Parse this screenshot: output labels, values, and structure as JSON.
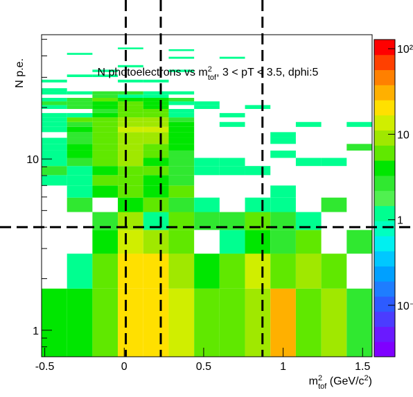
{
  "chart_data": {
    "type": "heatmap",
    "title": [
      "N photoelectrons vs m",
      "2",
      "tof",
      ", 3 < pT < 3.5, dphi:5"
    ],
    "xlabel": [
      "m",
      "2",
      "tof",
      " (GeV/c",
      "2",
      ")"
    ],
    "ylabel": "N p.e.",
    "xbins": [
      -0.52,
      -0.36,
      -0.2,
      -0.04,
      0.12,
      0.28,
      0.44,
      0.6,
      0.76,
      0.92,
      1.08,
      1.24,
      1.4,
      1.56
    ],
    "ybins": [
      0.7,
      1.75,
      2.8,
      3.85,
      4.9,
      5.95,
      7,
      8.05,
      9.1,
      10.15,
      11.2,
      12.25,
      13.3,
      14.35,
      15.4,
      16.45,
      17.5,
      18.55,
      19.6,
      20.65,
      21.7,
      22.75,
      23.8,
      24.85,
      25.9,
      26.95,
      28,
      29.05,
      30.1,
      31.15,
      32.2,
      33.25,
      34.3,
      35.35,
      36.4,
      37.45,
      38.5,
      39.55,
      40.6,
      41.65,
      42.7,
      43.75,
      44.8,
      45.85,
      46.9,
      47.95,
      49,
      50.05,
      51.1,
      52.15,
      53.2
    ],
    "values": [
      [
        4,
        4,
        6,
        20,
        20,
        12,
        6,
        5,
        10,
        30,
        6,
        8,
        2.5
      ],
      [
        null,
        1.2,
        5,
        20,
        18,
        10,
        4,
        6,
        15,
        7,
        9,
        5,
        null
      ],
      [
        null,
        null,
        4,
        15,
        8,
        6,
        null,
        1.2,
        4,
        3,
        5,
        null,
        3
      ],
      [
        null,
        null,
        3,
        8,
        1.2,
        5,
        3,
        3,
        6,
        3,
        1.2,
        null,
        null
      ],
      [
        null,
        3,
        null,
        4,
        5,
        3,
        1.2,
        null,
        1.2,
        1.2,
        null,
        3,
        null
      ],
      [
        null,
        1.2,
        4,
        6,
        4,
        5,
        null,
        null,
        null,
        1.2,
        null,
        null,
        null
      ],
      [
        1.2,
        1.2,
        6,
        6,
        4,
        3,
        null,
        null,
        null,
        null,
        null,
        null,
        null
      ],
      [
        3,
        1.2,
        4,
        7,
        5,
        3,
        1.2,
        1.2,
        1.2,
        null,
        null,
        null,
        null
      ],
      [
        1.2,
        3,
        6,
        9,
        4,
        3,
        1.2,
        1.2,
        null,
        null,
        1.2,
        1.2,
        null
      ],
      [
        1.2,
        4,
        7,
        9,
        6,
        3,
        null,
        null,
        null,
        1.2,
        null,
        null,
        null
      ],
      [
        1.2,
        4,
        6,
        10,
        6,
        4,
        null,
        null,
        null,
        null,
        null,
        null,
        3
      ],
      [
        1.2,
        3,
        6,
        10,
        9,
        4,
        null,
        null,
        null,
        1.2,
        null,
        null,
        null
      ],
      [
        null,
        3,
        6,
        11,
        9,
        4,
        null,
        null,
        null,
        1.2,
        null,
        null,
        null
      ],
      [
        1.2,
        4,
        6,
        12,
        12,
        4,
        null,
        null,
        null,
        null,
        null,
        null,
        null
      ],
      [
        1.2,
        3,
        6,
        10,
        9,
        4,
        null,
        1.2,
        null,
        null,
        1.2,
        null,
        1.2
      ],
      [
        1.2,
        5,
        6,
        9,
        9,
        3,
        null,
        null,
        null,
        null,
        null,
        null,
        null
      ],
      [
        1.2,
        1.2,
        4,
        7,
        6,
        1.2,
        null,
        1.2,
        null,
        null,
        null,
        null,
        null
      ],
      [
        null,
        null,
        3,
        6,
        5,
        1.2,
        null,
        null,
        null,
        null,
        null,
        null,
        null
      ],
      [
        1.2,
        3,
        4,
        6,
        4,
        null,
        1.2,
        null,
        1.2,
        null,
        null,
        null,
        null
      ],
      [
        3,
        3,
        4,
        6,
        4,
        1.2,
        1.2,
        null,
        null,
        null,
        null,
        null,
        null
      ],
      [
        1.2,
        3,
        5,
        4,
        4,
        3,
        null,
        null,
        null,
        null,
        null,
        null,
        null
      ],
      [
        null,
        null,
        3,
        1.2,
        1.2,
        null,
        null,
        null,
        null,
        null,
        null,
        null,
        null
      ],
      [
        1.2,
        1.2,
        3,
        3,
        1.2,
        1.2,
        null,
        null,
        null,
        null,
        null,
        null,
        null
      ],
      [
        1.2,
        null,
        null,
        null,
        null,
        null,
        null,
        null,
        null,
        null,
        null,
        null,
        null
      ],
      [
        null,
        null,
        null,
        null,
        null,
        null,
        null,
        null,
        null,
        null,
        null,
        null,
        null
      ],
      [
        null,
        null,
        null,
        null,
        null,
        null,
        null,
        null,
        null,
        null,
        null,
        null,
        null
      ],
      [
        1.2,
        null,
        null,
        1.2,
        1.2,
        null,
        null,
        null,
        null,
        null,
        null,
        null,
        null
      ],
      [
        null,
        null,
        null,
        null,
        null,
        null,
        null,
        null,
        null,
        null,
        null,
        null,
        null
      ],
      [
        null,
        1.2,
        1.2,
        null,
        null,
        null,
        null,
        null,
        null,
        null,
        null,
        null,
        null
      ],
      [
        null,
        null,
        null,
        null,
        null,
        null,
        null,
        null,
        null,
        null,
        null,
        null,
        null
      ],
      [
        null,
        null,
        1.2,
        null,
        null,
        1.2,
        null,
        null,
        null,
        null,
        null,
        null,
        null
      ],
      [
        null,
        null,
        null,
        null,
        null,
        null,
        null,
        null,
        null,
        null,
        null,
        null,
        null
      ],
      [
        null,
        null,
        null,
        1.2,
        null,
        null,
        null,
        null,
        null,
        null,
        null,
        null,
        null
      ],
      [
        null,
        null,
        null,
        null,
        null,
        null,
        null,
        null,
        null,
        null,
        null,
        null,
        null
      ],
      [
        null,
        null,
        null,
        null,
        null,
        null,
        null,
        null,
        null,
        null,
        null,
        null,
        null
      ],
      [
        null,
        null,
        null,
        null,
        null,
        null,
        null,
        null,
        null,
        null,
        null,
        null,
        null
      ],
      [
        null,
        null,
        null,
        null,
        null,
        1.2,
        null,
        1.2,
        null,
        null,
        null,
        null,
        null
      ],
      [
        null,
        null,
        null,
        null,
        null,
        null,
        null,
        null,
        null,
        null,
        null,
        null,
        null
      ],
      [
        null,
        1.2,
        null,
        null,
        null,
        null,
        null,
        null,
        null,
        null,
        null,
        null,
        null
      ],
      [
        null,
        null,
        null,
        null,
        null,
        null,
        null,
        null,
        null,
        null,
        null,
        null,
        null
      ],
      [
        null,
        null,
        null,
        null,
        null,
        1.2,
        null,
        null,
        null,
        null,
        null,
        null,
        null
      ],
      [
        null,
        null,
        null,
        1.2,
        null,
        null,
        null,
        null,
        null,
        null,
        null,
        null,
        null
      ],
      [
        null,
        null,
        null,
        null,
        null,
        null,
        null,
        null,
        null,
        null,
        null,
        null,
        null
      ],
      [
        null,
        null,
        null,
        null,
        null,
        null,
        null,
        null,
        null,
        null,
        null,
        null,
        null
      ],
      [
        null,
        null,
        null,
        null,
        null,
        null,
        null,
        null,
        null,
        null,
        null,
        null,
        null
      ],
      [
        null,
        null,
        null,
        null,
        null,
        null,
        null,
        null,
        null,
        null,
        null,
        null,
        null
      ],
      [
        null,
        null,
        null,
        null,
        null,
        null,
        null,
        null,
        null,
        null,
        null,
        null,
        null
      ],
      [
        null,
        null,
        null,
        null,
        null,
        null,
        null,
        null,
        null,
        null,
        null,
        null,
        null
      ],
      [
        null,
        null,
        null,
        null,
        null,
        null,
        null,
        null,
        null,
        null,
        null,
        null,
        null
      ],
      [
        null,
        null,
        null,
        null,
        null,
        null,
        null,
        null,
        null,
        null,
        null,
        null,
        null
      ]
    ],
    "xlim": [
      -0.52,
      1.56
    ],
    "xticks": [
      -0.5,
      0,
      0.5,
      1,
      1.5
    ],
    "ylim": [
      0.7,
      53.2
    ],
    "yticks": [
      1,
      10
    ],
    "yminor": [
      0.8,
      0.9,
      2,
      3,
      4,
      5,
      6,
      7,
      8,
      9,
      20,
      30,
      40,
      50
    ],
    "ylog": true,
    "zlim": [
      0.025,
      128
    ],
    "zticks": [
      {
        "value": 0.1,
        "label": "10⁻¹"
      },
      1,
      10,
      {
        "value": 100,
        "label": "10²"
      }
    ],
    "zlog": true,
    "palette": [
      "#7f00ff",
      "#6a1aff",
      "#4b3cff",
      "#2d5bff",
      "#1e7dff",
      "#00a0ff",
      "#00c8ff",
      "#00f0f0",
      "#00ffc0",
      "#00ff90",
      "#50f050",
      "#30e830",
      "#00e600",
      "#60e800",
      "#a0e800",
      "#d0ee00",
      "#ffe000",
      "#ffb000",
      "#ff8000",
      "#ff4000",
      "#ff0000"
    ],
    "cut_lines": {
      "x": [
        0.01,
        0.23,
        0.87
      ],
      "y": [
        4
      ]
    }
  }
}
